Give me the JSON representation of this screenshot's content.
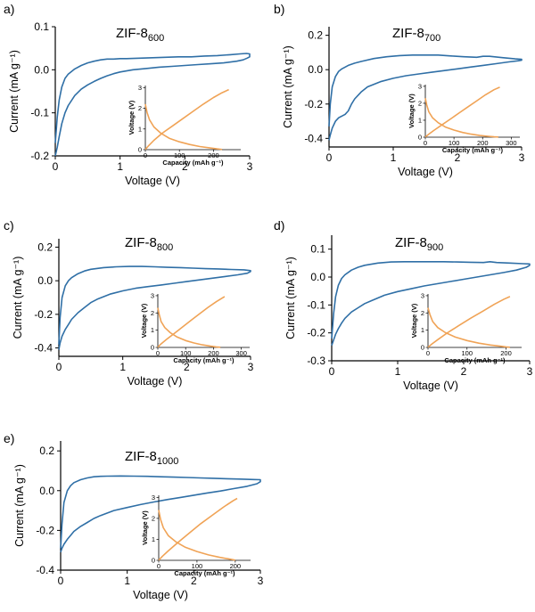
{
  "colors": {
    "cv": "#2f6fa6",
    "gcd": "#f0a356",
    "axis": "#000000"
  },
  "chart_data": [
    {
      "type": "line",
      "panel_label": "a)",
      "title_base": "ZIF-8",
      "title_sub": "600",
      "xlabel": "Voltage (V)",
      "ylabel": "Current (mA g⁻¹)",
      "xlim": [
        0,
        3
      ],
      "ylim": [
        -0.2,
        0.1
      ],
      "xticks": [
        0,
        1,
        2,
        3
      ],
      "yticks": [
        -0.2,
        -0.1,
        0.0,
        0.1
      ],
      "xtick_labels": [
        "0",
        "1",
        "2",
        "3"
      ],
      "ytick_labels": [
        "-0.2",
        "-0.1",
        "0.0",
        "0.1"
      ],
      "cv_x": [
        0.0,
        0.03,
        0.06,
        0.1,
        0.15,
        0.2,
        0.3,
        0.4,
        0.5,
        0.6,
        0.7,
        0.8,
        0.9,
        1.0,
        1.2,
        1.4,
        1.6,
        1.8,
        2.0,
        2.2,
        2.4,
        2.6,
        2.8,
        2.9,
        2.96,
        3.0,
        3.0,
        2.95,
        2.85,
        2.7,
        2.5,
        2.3,
        2.1,
        1.9,
        1.7,
        1.5,
        1.3,
        1.1,
        1.0,
        0.9,
        0.8,
        0.7,
        0.6,
        0.5,
        0.4,
        0.3,
        0.2,
        0.15,
        0.1,
        0.06,
        0.03,
        0.0
      ],
      "cv_y": [
        -0.2,
        -0.18,
        -0.155,
        -0.125,
        -0.1,
        -0.083,
        -0.06,
        -0.045,
        -0.035,
        -0.027,
        -0.02,
        -0.014,
        -0.009,
        -0.005,
        0.0,
        0.003,
        0.006,
        0.008,
        0.01,
        0.012,
        0.014,
        0.016,
        0.02,
        0.023,
        0.027,
        0.03,
        0.037,
        0.038,
        0.037,
        0.035,
        0.033,
        0.032,
        0.03,
        0.03,
        0.029,
        0.028,
        0.027,
        0.026,
        0.026,
        0.025,
        0.025,
        0.023,
        0.02,
        0.016,
        0.01,
        0.002,
        -0.01,
        -0.02,
        -0.04,
        -0.07,
        -0.11,
        -0.17
      ],
      "inset": {
        "xlabel": "Capacity (mAh g⁻¹)",
        "ylabel": "Voltage (V)",
        "xlim": [
          0,
          280
        ],
        "ylim": [
          0,
          3.1
        ],
        "xticks": [
          0,
          100,
          200
        ],
        "yticks": [
          0,
          1,
          2,
          3
        ],
        "xtick_labels": [
          "0",
          "100",
          "200"
        ],
        "ytick_labels": [
          "0",
          "1",
          "2",
          "3"
        ],
        "discharge_x": [
          0,
          5,
          12,
          25,
          45,
          70,
          100,
          130,
          160,
          190,
          210,
          220,
          225
        ],
        "discharge_y": [
          2.2,
          1.8,
          1.45,
          1.1,
          0.8,
          0.55,
          0.38,
          0.25,
          0.15,
          0.08,
          0.04,
          0.02,
          0.01
        ],
        "charge_x": [
          0,
          10,
          25,
          50,
          80,
          110,
          140,
          170,
          200,
          225,
          245
        ],
        "charge_y": [
          0.01,
          0.2,
          0.45,
          0.8,
          1.15,
          1.5,
          1.85,
          2.2,
          2.52,
          2.75,
          2.9
        ]
      }
    },
    {
      "type": "line",
      "panel_label": "b)",
      "title_base": "ZIF-8",
      "title_sub": "700",
      "xlabel": "Voltage (V)",
      "ylabel": "Current (mA g⁻¹)",
      "xlim": [
        0,
        3
      ],
      "ylim": [
        -0.45,
        0.25
      ],
      "xticks": [
        0,
        1,
        2,
        3
      ],
      "yticks": [
        -0.4,
        -0.2,
        0.0,
        0.2
      ],
      "xtick_labels": [
        "0",
        "1",
        "2",
        "3"
      ],
      "ytick_labels": [
        "-0.4",
        "-0.2",
        "0.0",
        "0.2"
      ],
      "cv_x": [
        0.0,
        0.02,
        0.05,
        0.1,
        0.15,
        0.2,
        0.25,
        0.3,
        0.35,
        0.4,
        0.5,
        0.6,
        0.8,
        1.0,
        1.2,
        1.4,
        1.6,
        1.8,
        2.0,
        2.2,
        2.4,
        2.6,
        2.8,
        2.95,
        3.0,
        3.0,
        2.9,
        2.7,
        2.5,
        2.4,
        2.3,
        2.1,
        1.9,
        1.7,
        1.5,
        1.3,
        1.1,
        0.9,
        0.7,
        0.5,
        0.4,
        0.3,
        0.2,
        0.15,
        0.1,
        0.05,
        0.02,
        0.0
      ],
      "cv_y": [
        -0.41,
        -0.38,
        -0.34,
        -0.3,
        -0.28,
        -0.27,
        -0.26,
        -0.24,
        -0.2,
        -0.17,
        -0.13,
        -0.1,
        -0.07,
        -0.05,
        -0.035,
        -0.025,
        -0.015,
        -0.005,
        0.005,
        0.015,
        0.025,
        0.035,
        0.045,
        0.052,
        0.055,
        0.06,
        0.063,
        0.07,
        0.078,
        0.078,
        0.072,
        0.075,
        0.08,
        0.085,
        0.085,
        0.085,
        0.082,
        0.075,
        0.065,
        0.048,
        0.038,
        0.025,
        0.005,
        -0.01,
        -0.04,
        -0.1,
        -0.2,
        -0.33
      ],
      "inset": {
        "xlabel": "Capacity (mAh g⁻¹)",
        "ylabel": "Voltage (V)",
        "xlim": [
          0,
          330
        ],
        "ylim": [
          0,
          3.1
        ],
        "xticks": [
          0,
          100,
          200,
          300
        ],
        "yticks": [
          0,
          1,
          2,
          3
        ],
        "xtick_labels": [
          "0",
          "100",
          "200",
          "300"
        ],
        "ytick_labels": [
          "0",
          "1",
          "2",
          "3"
        ],
        "discharge_x": [
          0,
          5,
          12,
          25,
          45,
          70,
          100,
          130,
          160,
          190,
          220,
          240,
          255
        ],
        "discharge_y": [
          2.3,
          1.9,
          1.5,
          1.15,
          0.85,
          0.6,
          0.42,
          0.28,
          0.18,
          0.1,
          0.05,
          0.02,
          0.01
        ],
        "charge_x": [
          0,
          10,
          30,
          60,
          90,
          120,
          150,
          180,
          210,
          240,
          260
        ],
        "charge_y": [
          0.01,
          0.15,
          0.4,
          0.75,
          1.1,
          1.45,
          1.8,
          2.15,
          2.5,
          2.8,
          2.95
        ]
      }
    },
    {
      "type": "line",
      "panel_label": "c)",
      "title_base": "ZIF-8",
      "title_sub": "800",
      "xlabel": "Voltage (V)",
      "ylabel": "Current (mA g⁻¹)",
      "xlim": [
        0,
        3
      ],
      "ylim": [
        -0.45,
        0.25
      ],
      "xticks": [
        0,
        1,
        2,
        3
      ],
      "yticks": [
        -0.4,
        -0.2,
        0.0,
        0.2
      ],
      "xtick_labels": [
        "0",
        "1",
        "2",
        "3"
      ],
      "ytick_labels": [
        "-0.4",
        "-0.2",
        "0.0",
        "0.2"
      ],
      "cv_x": [
        0.0,
        0.02,
        0.05,
        0.1,
        0.15,
        0.2,
        0.3,
        0.4,
        0.5,
        0.6,
        0.8,
        1.0,
        1.2,
        1.4,
        1.6,
        1.8,
        2.0,
        2.2,
        2.4,
        2.6,
        2.8,
        2.95,
        3.0,
        3.0,
        2.9,
        2.7,
        2.5,
        2.3,
        2.1,
        1.9,
        1.7,
        1.5,
        1.3,
        1.1,
        0.9,
        0.7,
        0.5,
        0.4,
        0.3,
        0.2,
        0.15,
        0.1,
        0.05,
        0.02,
        0.0
      ],
      "cv_y": [
        -0.41,
        -0.37,
        -0.33,
        -0.29,
        -0.26,
        -0.23,
        -0.19,
        -0.16,
        -0.13,
        -0.11,
        -0.08,
        -0.06,
        -0.045,
        -0.035,
        -0.025,
        -0.015,
        -0.005,
        0.005,
        0.015,
        0.025,
        0.035,
        0.045,
        0.055,
        0.06,
        0.065,
        0.067,
        0.07,
        0.072,
        0.075,
        0.078,
        0.08,
        0.083,
        0.085,
        0.085,
        0.083,
        0.078,
        0.068,
        0.058,
        0.042,
        0.018,
        0.0,
        -0.03,
        -0.1,
        -0.22,
        -0.38
      ],
      "inset": {
        "xlabel": "Capacity (mAh g⁻¹)",
        "ylabel": "Voltage (V)",
        "xlim": [
          0,
          330
        ],
        "ylim": [
          0,
          3.1
        ],
        "xticks": [
          0,
          100,
          200,
          300
        ],
        "yticks": [
          0,
          1,
          2,
          3
        ],
        "xtick_labels": [
          "0",
          "100",
          "200",
          "300"
        ],
        "ytick_labels": [
          "0",
          "1",
          "2",
          "3"
        ],
        "discharge_x": [
          0,
          5,
          12,
          25,
          45,
          70,
          100,
          130,
          160,
          190,
          210,
          225
        ],
        "discharge_y": [
          2.3,
          1.9,
          1.5,
          1.15,
          0.85,
          0.6,
          0.4,
          0.26,
          0.15,
          0.07,
          0.03,
          0.01
        ],
        "charge_x": [
          0,
          10,
          30,
          60,
          90,
          120,
          150,
          180,
          210,
          240
        ],
        "charge_y": [
          0.01,
          0.18,
          0.45,
          0.82,
          1.2,
          1.58,
          1.95,
          2.32,
          2.65,
          2.95
        ]
      }
    },
    {
      "type": "line",
      "panel_label": "d)",
      "title_base": "ZIF-8",
      "title_sub": "900",
      "xlabel": "Voltage (V)",
      "ylabel": "Current (mA g⁻¹)",
      "xlim": [
        0,
        3
      ],
      "ylim": [
        -0.3,
        0.15
      ],
      "xticks": [
        0,
        1,
        2,
        3
      ],
      "yticks": [
        -0.3,
        -0.2,
        -0.1,
        0.0,
        0.1
      ],
      "xtick_labels": [
        "0",
        "1",
        "2",
        "3"
      ],
      "ytick_labels": [
        "-0.3",
        "-0.2",
        "-0.1",
        "0.0",
        "0.1"
      ],
      "cv_x": [
        0.0,
        0.03,
        0.06,
        0.1,
        0.15,
        0.2,
        0.3,
        0.4,
        0.5,
        0.6,
        0.7,
        0.8,
        1.0,
        1.2,
        1.4,
        1.6,
        1.8,
        2.0,
        2.2,
        2.4,
        2.6,
        2.8,
        2.95,
        3.0,
        3.0,
        2.9,
        2.7,
        2.5,
        2.4,
        2.3,
        2.1,
        1.9,
        1.7,
        1.5,
        1.3,
        1.1,
        0.9,
        0.7,
        0.5,
        0.4,
        0.3,
        0.2,
        0.15,
        0.1,
        0.06,
        0.03,
        0.0
      ],
      "cv_y": [
        -0.245,
        -0.225,
        -0.205,
        -0.185,
        -0.165,
        -0.148,
        -0.125,
        -0.11,
        -0.095,
        -0.085,
        -0.075,
        -0.065,
        -0.052,
        -0.042,
        -0.032,
        -0.024,
        -0.016,
        -0.008,
        0.0,
        0.008,
        0.016,
        0.025,
        0.035,
        0.042,
        0.047,
        0.048,
        0.05,
        0.052,
        0.055,
        0.052,
        0.053,
        0.054,
        0.055,
        0.055,
        0.055,
        0.055,
        0.054,
        0.05,
        0.042,
        0.035,
        0.025,
        0.008,
        -0.005,
        -0.03,
        -0.07,
        -0.13,
        -0.22
      ],
      "inset": {
        "xlabel": "Capacity (mAh g⁻¹)",
        "ylabel": "Voltage (V)",
        "xlim": [
          0,
          240
        ],
        "ylim": [
          0,
          3.1
        ],
        "xticks": [
          0,
          100,
          200
        ],
        "yticks": [
          0,
          1,
          2,
          3
        ],
        "xtick_labels": [
          "0",
          "100",
          "200"
        ],
        "ytick_labels": [
          "0",
          "1",
          "2",
          "3"
        ],
        "discharge_x": [
          0,
          5,
          12,
          25,
          45,
          70,
          100,
          130,
          160,
          185,
          200,
          210
        ],
        "discharge_y": [
          2.3,
          1.9,
          1.5,
          1.15,
          0.85,
          0.6,
          0.4,
          0.25,
          0.14,
          0.07,
          0.03,
          0.01
        ],
        "charge_x": [
          0,
          10,
          25,
          50,
          80,
          110,
          140,
          170,
          195,
          210
        ],
        "charge_y": [
          0.01,
          0.2,
          0.45,
          0.85,
          1.28,
          1.7,
          2.1,
          2.5,
          2.8,
          2.95
        ]
      }
    },
    {
      "type": "line",
      "panel_label": "e)",
      "title_base": "ZIF-8",
      "title_sub": "1000",
      "xlabel": "Voltage (V)",
      "ylabel": "Current (mA g⁻¹)",
      "xlim": [
        0,
        3
      ],
      "ylim": [
        -0.4,
        0.25
      ],
      "xticks": [
        0,
        1,
        2,
        3
      ],
      "yticks": [
        -0.4,
        -0.2,
        0.0,
        0.2
      ],
      "xtick_labels": [
        "0",
        "1",
        "2",
        "3"
      ],
      "ytick_labels": [
        "-0.4",
        "-0.2",
        "0.0",
        "0.2"
      ],
      "cv_x": [
        0.0,
        0.02,
        0.05,
        0.1,
        0.15,
        0.2,
        0.3,
        0.4,
        0.5,
        0.6,
        0.8,
        1.0,
        1.2,
        1.4,
        1.6,
        1.8,
        2.0,
        2.2,
        2.4,
        2.6,
        2.8,
        2.95,
        3.0,
        3.0,
        2.9,
        2.7,
        2.5,
        2.3,
        2.1,
        1.9,
        1.7,
        1.5,
        1.3,
        1.1,
        0.9,
        0.7,
        0.6,
        0.5,
        0.4,
        0.3,
        0.2,
        0.15,
        0.1,
        0.05,
        0.02,
        0.0
      ],
      "cv_y": [
        -0.31,
        -0.29,
        -0.27,
        -0.245,
        -0.225,
        -0.205,
        -0.18,
        -0.16,
        -0.14,
        -0.125,
        -0.1,
        -0.085,
        -0.07,
        -0.057,
        -0.045,
        -0.034,
        -0.023,
        -0.012,
        -0.002,
        0.01,
        0.022,
        0.035,
        0.045,
        0.055,
        0.056,
        0.058,
        0.06,
        0.062,
        0.064,
        0.066,
        0.068,
        0.07,
        0.072,
        0.073,
        0.074,
        0.073,
        0.072,
        0.07,
        0.064,
        0.055,
        0.04,
        0.025,
        0.0,
        -0.06,
        -0.17,
        -0.29
      ],
      "inset": {
        "xlabel": "Capacity (mAh g⁻¹)",
        "ylabel": "Voltage (V)",
        "xlim": [
          0,
          240
        ],
        "ylim": [
          0,
          3.1
        ],
        "xticks": [
          0,
          100,
          200
        ],
        "yticks": [
          0,
          1,
          2,
          3
        ],
        "xtick_labels": [
          "0",
          "100",
          "200"
        ],
        "ytick_labels": [
          "0",
          "1",
          "2",
          "3"
        ],
        "discharge_x": [
          0,
          5,
          12,
          25,
          45,
          70,
          100,
          130,
          160,
          185,
          200
        ],
        "discharge_y": [
          2.4,
          1.95,
          1.55,
          1.18,
          0.88,
          0.62,
          0.42,
          0.26,
          0.14,
          0.06,
          0.01
        ],
        "charge_x": [
          0,
          10,
          25,
          50,
          80,
          110,
          140,
          170,
          195,
          205
        ],
        "charge_y": [
          0.01,
          0.2,
          0.45,
          0.85,
          1.3,
          1.75,
          2.15,
          2.55,
          2.85,
          2.95
        ]
      }
    }
  ]
}
